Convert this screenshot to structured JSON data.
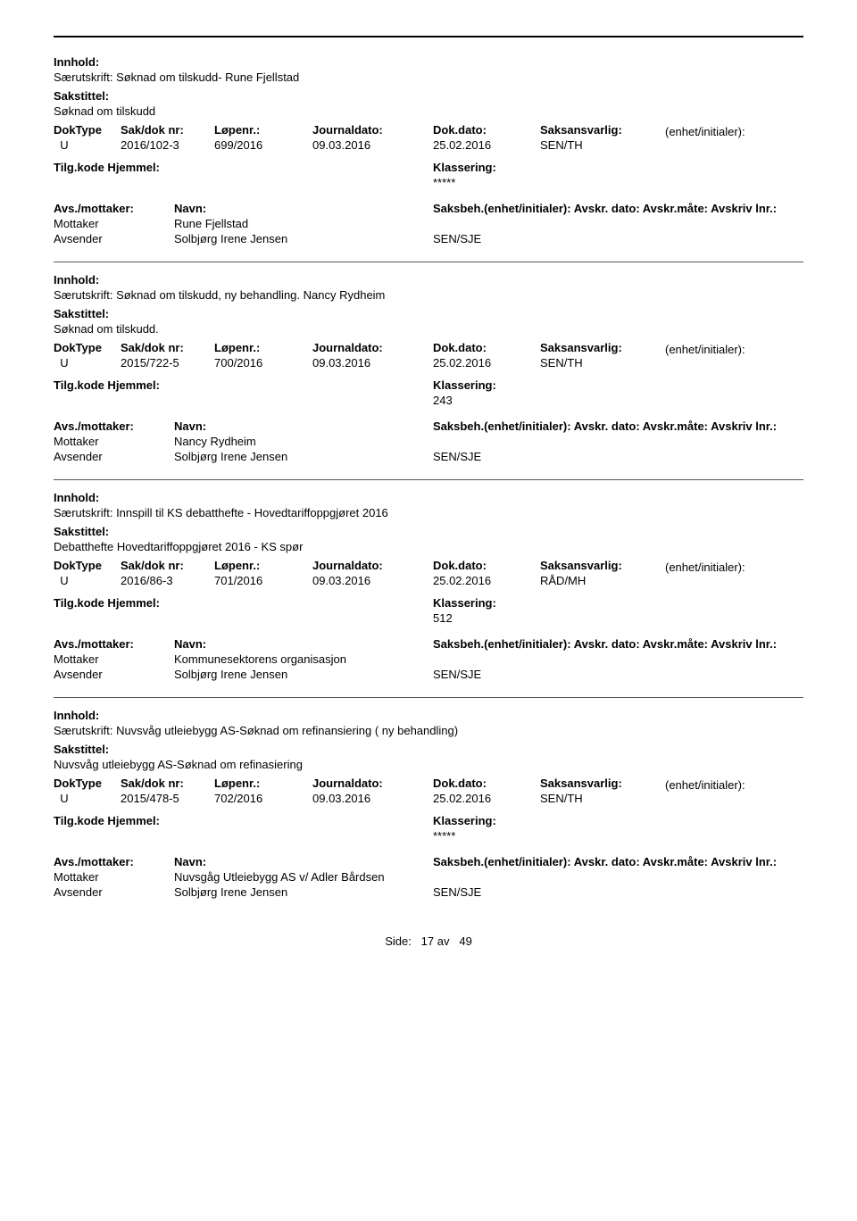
{
  "labels": {
    "innhold": "Innhold:",
    "sakstittel": "Sakstittel:",
    "doktype": "DokType",
    "sakdok": "Sak/dok nr:",
    "lopenr": "Løpenr.:",
    "journaldato": "Journaldato:",
    "dokdato": "Dok.dato:",
    "saksansvarlig": "Saksansvarlig:",
    "enhet": "(enhet/initialer):",
    "tilgkode": "Tilg.kode",
    "hjemmel": "Hjemmel:",
    "klassering": "Klassering:",
    "avsmottaker": "Avs./mottaker:",
    "navn": "Navn:",
    "saksbeh": "Saksbeh.(enhet/initialer):",
    "avskrdato": "Avskr. dato:",
    "avskrmate": "Avskr.måte:",
    "avskrivlnr": "Avskriv lnr.:",
    "mottaker": "Mottaker",
    "avsender": "Avsender",
    "side": "Side:",
    "av": "av"
  },
  "page": {
    "current": "17",
    "total": "49"
  },
  "entries": [
    {
      "innhold": "Særutskrift: Søknad om tilskudd- Rune Fjellstad",
      "sakstittel": "Søknad om tilskudd",
      "doktype": "U",
      "sakdok": "2016/102-3",
      "lopenr": "699/2016",
      "journaldato": "09.03.2016",
      "dokdato": "25.02.2016",
      "saksansvarlig": "SEN/TH",
      "klassering": "*****",
      "parties": [
        {
          "role": "Mottaker",
          "name": "Rune Fjellstad",
          "saksbeh": ""
        },
        {
          "role": "Avsender",
          "name": "Solbjørg Irene Jensen",
          "saksbeh": "SEN/SJE"
        }
      ]
    },
    {
      "innhold": "Særutskrift: Søknad om tilskudd, ny behandling. Nancy Rydheim",
      "sakstittel": "Søknad om tilskudd.",
      "doktype": "U",
      "sakdok": "2015/722-5",
      "lopenr": "700/2016",
      "journaldato": "09.03.2016",
      "dokdato": "25.02.2016",
      "saksansvarlig": "SEN/TH",
      "klassering": "243",
      "parties": [
        {
          "role": "Mottaker",
          "name": "Nancy Rydheim",
          "saksbeh": ""
        },
        {
          "role": "Avsender",
          "name": "Solbjørg Irene Jensen",
          "saksbeh": "SEN/SJE"
        }
      ]
    },
    {
      "innhold": "Særutskrift: Innspill til KS debatthefte - Hovedtariffoppgjøret 2016",
      "sakstittel": "Debatthefte Hovedtariffoppgjøret 2016 - KS spør",
      "doktype": "U",
      "sakdok": "2016/86-3",
      "lopenr": "701/2016",
      "journaldato": "09.03.2016",
      "dokdato": "25.02.2016",
      "saksansvarlig": "RÅD/MH",
      "klassering": "512",
      "parties": [
        {
          "role": "Mottaker",
          "name": "Kommunesektorens organisasjon",
          "saksbeh": ""
        },
        {
          "role": "Avsender",
          "name": "Solbjørg Irene Jensen",
          "saksbeh": "SEN/SJE"
        }
      ]
    },
    {
      "innhold": "Særutskrift: Nuvsvåg utleiebygg AS-Søknad om refinansiering ( ny behandling)",
      "sakstittel": "Nuvsvåg utleiebygg AS-Søknad om refinasiering",
      "doktype": "U",
      "sakdok": "2015/478-5",
      "lopenr": "702/2016",
      "journaldato": "09.03.2016",
      "dokdato": "25.02.2016",
      "saksansvarlig": "SEN/TH",
      "klassering": "*****",
      "parties": [
        {
          "role": "Mottaker",
          "name": "Nuvsgåg Utleiebygg AS v/ Adler Bårdsen",
          "saksbeh": ""
        },
        {
          "role": "Avsender",
          "name": "Solbjørg Irene Jensen",
          "saksbeh": "SEN/SJE"
        }
      ]
    }
  ]
}
